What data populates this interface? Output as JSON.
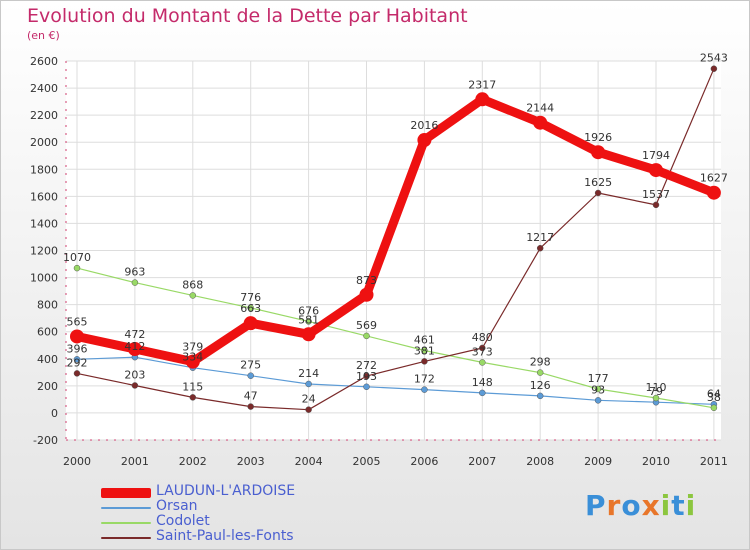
{
  "title": "Evolution du Montant de la Dette par Habitant",
  "unit": "(en €)",
  "logo": "Proxiti",
  "chart_data": {
    "type": "line",
    "title": "Evolution du Montant de la Dette par Habitant",
    "ylabel": "(en €)",
    "xlabel": "",
    "x": [
      "2000",
      "2001",
      "2002",
      "2003",
      "2004",
      "2005",
      "2006",
      "2007",
      "2008",
      "2009",
      "2010",
      "2011"
    ],
    "ylim": [
      -200,
      2600
    ],
    "yticks": [
      -200,
      0,
      200,
      400,
      600,
      800,
      1000,
      1200,
      1400,
      1600,
      1800,
      2000,
      2200,
      2400,
      2600
    ],
    "grid": "horizontal",
    "legend_position": "bottom-left",
    "series": [
      {
        "name": "LAUDUN-L'ARDOISE",
        "color": "#ee1111",
        "values": [
          565,
          472,
          379,
          663,
          581,
          873,
          2016,
          2317,
          2144,
          1926,
          1794,
          1627
        ]
      },
      {
        "name": "Orsan",
        "color": "#5c9bd6",
        "values": [
          396,
          412,
          334,
          275,
          214,
          193,
          172,
          148,
          126,
          93,
          79,
          64
        ]
      },
      {
        "name": "Codolet",
        "color": "#99d966",
        "values": [
          1070,
          963,
          868,
          776,
          676,
          569,
          461,
          373,
          298,
          177,
          110,
          38
        ]
      },
      {
        "name": "Saint-Paul-les-Fonts",
        "color": "#7a2a2a",
        "values": [
          292,
          203,
          115,
          47,
          24,
          272,
          381,
          480,
          1217,
          1625,
          1537,
          2543
        ]
      }
    ]
  }
}
